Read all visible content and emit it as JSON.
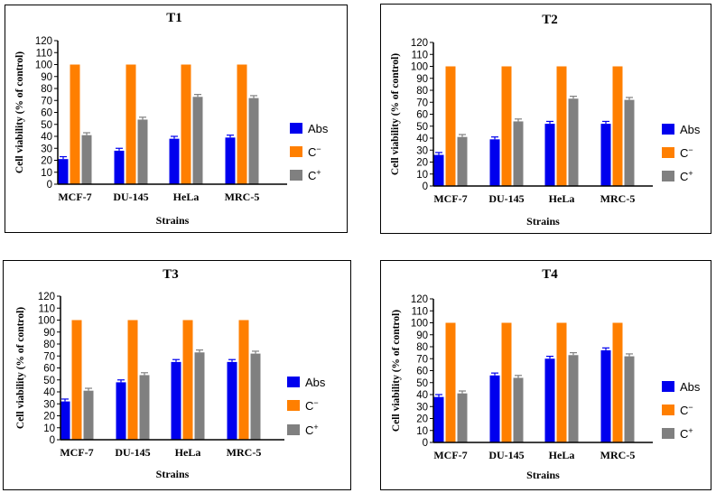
{
  "colors": {
    "abs": "#0000ee",
    "cneg": "#ff7f00",
    "cpos": "#808080",
    "axis": "#000000"
  },
  "legend": {
    "abs": "Abs",
    "cneg_base": "C",
    "cneg_sup": "−",
    "cpos_base": "C",
    "cpos_sup": "+"
  },
  "chart_data": [
    {
      "type": "bar",
      "title": "T1",
      "xlabel": "Strains",
      "ylabel": "Cell viability (% of control)",
      "ylim": [
        0,
        120
      ],
      "yticks": [
        "0",
        "10",
        "20",
        "30",
        "40",
        "50",
        "60",
        "70",
        "80",
        "90",
        "100",
        "110",
        "120"
      ],
      "categories": [
        "MCF-7",
        "DU-145",
        "HeLa",
        "MRC-5"
      ],
      "series": [
        {
          "name": "Abs",
          "values": [
            21,
            28,
            38,
            39
          ]
        },
        {
          "name": "C-",
          "values": [
            100,
            100,
            100,
            100
          ]
        },
        {
          "name": "C+",
          "values": [
            41,
            54,
            73,
            72
          ]
        }
      ],
      "errors": [
        [
          2,
          2,
          2,
          2
        ],
        [
          0,
          0,
          0,
          0
        ],
        [
          2,
          2,
          2,
          2
        ]
      ]
    },
    {
      "type": "bar",
      "title": "T2",
      "xlabel": "Strains",
      "ylabel": "Cell viability (% of control)",
      "ylim": [
        0,
        120
      ],
      "yticks": [
        "0",
        "10",
        "20",
        "30",
        "40",
        "50",
        "60",
        "70",
        "80",
        "90",
        "100",
        "110",
        "120"
      ],
      "categories": [
        "MCF-7",
        "DU-145",
        "HeLa",
        "MRC-5"
      ],
      "series": [
        {
          "name": "Abs",
          "values": [
            26,
            39,
            52,
            52
          ]
        },
        {
          "name": "C-",
          "values": [
            100,
            100,
            100,
            100
          ]
        },
        {
          "name": "C+",
          "values": [
            41,
            54,
            73,
            72
          ]
        }
      ],
      "errors": [
        [
          2,
          2,
          2,
          2
        ],
        [
          0,
          0,
          0,
          0
        ],
        [
          2,
          2,
          2,
          2
        ]
      ]
    },
    {
      "type": "bar",
      "title": "T3",
      "xlabel": "Strains",
      "ylabel": "Cell viability (% of control)",
      "ylim": [
        0,
        120
      ],
      "yticks": [
        "0",
        "10",
        "20",
        "30",
        "40",
        "50",
        "60",
        "70",
        "80",
        "90",
        "100",
        "110",
        "120"
      ],
      "categories": [
        "MCF-7",
        "DU-145",
        "HeLa",
        "MRC-5"
      ],
      "series": [
        {
          "name": "Abs",
          "values": [
            32,
            48,
            65,
            65
          ]
        },
        {
          "name": "C-",
          "values": [
            100,
            100,
            100,
            100
          ]
        },
        {
          "name": "C+",
          "values": [
            41,
            54,
            73,
            72
          ]
        }
      ],
      "errors": [
        [
          2,
          2,
          2,
          2
        ],
        [
          0,
          0,
          0,
          0
        ],
        [
          2,
          2,
          2,
          2
        ]
      ]
    },
    {
      "type": "bar",
      "title": "T4",
      "xlabel": "Strains",
      "ylabel": "Cell viability (% of control)",
      "ylim": [
        0,
        120
      ],
      "yticks": [
        "0",
        "10",
        "20",
        "30",
        "40",
        "50",
        "60",
        "70",
        "80",
        "90",
        "100",
        "110",
        "120"
      ],
      "categories": [
        "MCF-7",
        "DU-145",
        "HeLa",
        "MRC-5"
      ],
      "series": [
        {
          "name": "Abs",
          "values": [
            38,
            56,
            70,
            77
          ]
        },
        {
          "name": "C-",
          "values": [
            100,
            100,
            100,
            100
          ]
        },
        {
          "name": "C+",
          "values": [
            41,
            54,
            73,
            72
          ]
        }
      ],
      "errors": [
        [
          2,
          2,
          2,
          2
        ],
        [
          0,
          0,
          0,
          0
        ],
        [
          2,
          2,
          2,
          2
        ]
      ]
    }
  ]
}
